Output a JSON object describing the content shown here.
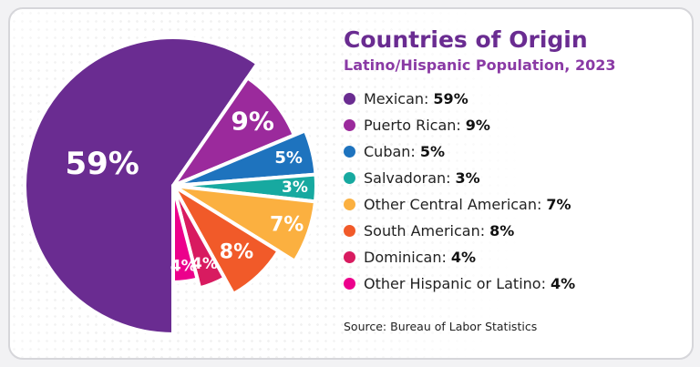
{
  "chart_data": {
    "type": "pie",
    "title": "Countries of Origin",
    "subtitle": "Latino/Hispanic Population, 2023",
    "source": "Source: Bureau of Labor Statistics",
    "slices": [
      {
        "name": "Mexican",
        "value": 59,
        "label": "59%",
        "color": "#6a2c91"
      },
      {
        "name": "Puerto Rican",
        "value": 9,
        "label": "9%",
        "color": "#9b2a9c"
      },
      {
        "name": "Cuban",
        "value": 5,
        "label": "5%",
        "color": "#1e73be"
      },
      {
        "name": "Salvadoran",
        "value": 3,
        "label": "3%",
        "color": "#17a9a0"
      },
      {
        "name": "Other Central American",
        "value": 7,
        "label": "7%",
        "color": "#fbb040"
      },
      {
        "name": "South American",
        "value": 8,
        "label": "8%",
        "color": "#f15a29"
      },
      {
        "name": "Dominican",
        "value": 4,
        "label": "4%",
        "color": "#d81b60"
      },
      {
        "name": "Other Hispanic or Latino",
        "value": 4,
        "label": "4%",
        "color": "#ec008c"
      }
    ]
  },
  "legend": [
    {
      "name": "Mexican:",
      "value": "59%"
    },
    {
      "name": "Puerto Rican:",
      "value": "9%"
    },
    {
      "name": "Cuban:",
      "value": "5%"
    },
    {
      "name": "Salvadoran:",
      "value": "3%"
    },
    {
      "name": "Other Central American:",
      "value": "7%"
    },
    {
      "name": "South American:",
      "value": "8%"
    },
    {
      "name": "Dominican:",
      "value": "4%"
    },
    {
      "name": "Other Hispanic or Latino:",
      "value": "4%"
    }
  ]
}
